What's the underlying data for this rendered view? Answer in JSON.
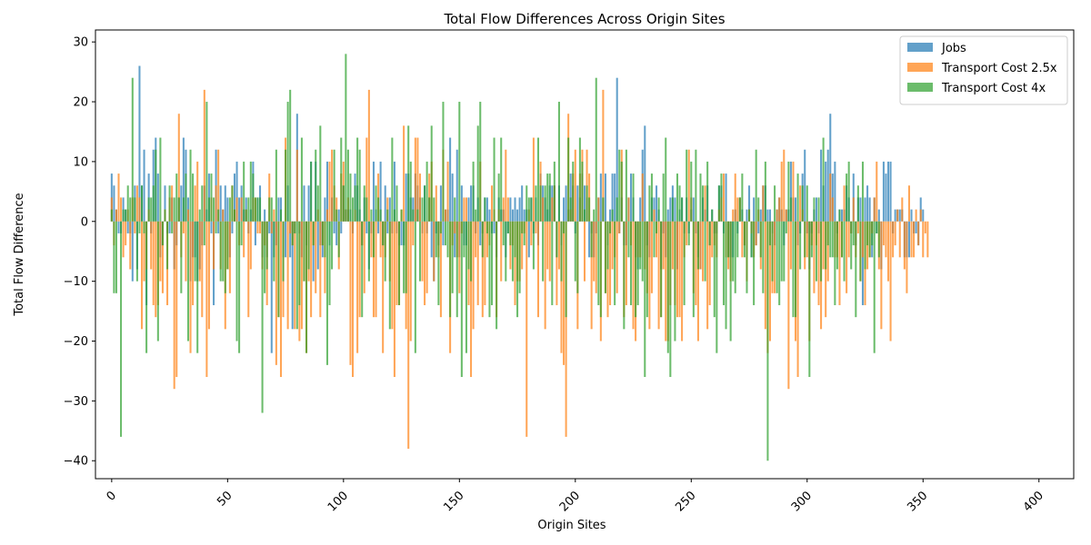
{
  "chart_data": {
    "type": "bar",
    "title": "Total Flow Differences Across Origin Sites",
    "xlabel": "Origin Sites",
    "ylabel": "Total Flow Difference",
    "xlim": [
      -7,
      415
    ],
    "ylim": [
      -43,
      32
    ],
    "x_ticks": [
      0,
      50,
      100,
      150,
      200,
      250,
      300,
      350,
      400
    ],
    "y_ticks": [
      -40,
      -30,
      -20,
      -10,
      0,
      10,
      20,
      30
    ],
    "legend_position": "top-right",
    "grid": false,
    "series": [
      {
        "name": "Jobs",
        "color": "#1f77b4",
        "values": [
          8,
          6,
          2,
          -2,
          -2,
          4,
          2,
          -2,
          -2,
          -10,
          6,
          -8,
          26,
          6,
          12,
          -14,
          8,
          -2,
          12,
          14,
          8,
          -6,
          -4,
          6,
          -2,
          -2,
          4,
          -8,
          -4,
          4,
          6,
          14,
          12,
          4,
          -10,
          -6,
          -6,
          -10,
          -8,
          -4,
          6,
          2,
          8,
          -2,
          -14,
          12,
          -2,
          6,
          2,
          6,
          4,
          -6,
          -2,
          8,
          10,
          4,
          6,
          2,
          4,
          -2,
          2,
          10,
          -4,
          4,
          6,
          -6,
          2,
          -6,
          -2,
          -22,
          -6,
          -4,
          4,
          4,
          -6,
          -6,
          6,
          -6,
          -18,
          -2,
          18,
          -2,
          -6,
          6,
          -4,
          6,
          10,
          -10,
          10,
          -8,
          -4,
          -6,
          4,
          10,
          -4,
          4,
          -2,
          -4,
          2,
          -2,
          6,
          2,
          2,
          2,
          -2,
          8,
          6,
          2,
          -4,
          4,
          -2,
          -8,
          -2,
          10,
          2,
          -2,
          10,
          -4,
          6,
          -2,
          4,
          -2,
          10,
          -2,
          -4,
          -4,
          -4,
          8,
          8,
          4,
          4,
          8,
          6,
          4,
          -2,
          6,
          -2,
          4,
          -6,
          -10,
          -2,
          -4,
          6,
          -4,
          2,
          2,
          14,
          8,
          -6,
          12,
          -6,
          6,
          -4,
          -4,
          4,
          6,
          6,
          -2,
          4,
          -4,
          -2,
          4,
          4,
          2,
          -2,
          -2,
          -6,
          4,
          2,
          2,
          -6,
          -2,
          4,
          2,
          4,
          2,
          4,
          6,
          2,
          2,
          -6,
          4,
          -2,
          4,
          -4,
          8,
          6,
          4,
          2,
          6,
          6,
          6,
          -6,
          6,
          -4,
          4,
          6,
          2,
          8,
          6,
          -2,
          6,
          4,
          8,
          6,
          4,
          -6,
          -2,
          -6,
          -2,
          4,
          8,
          4,
          8,
          -4,
          2,
          8,
          8,
          24,
          -2,
          4,
          -4,
          -4,
          4,
          8,
          4,
          -6,
          -8,
          4,
          12,
          16,
          -4,
          -6,
          4,
          4,
          6,
          2,
          -8,
          -2,
          -6,
          2,
          4,
          6,
          4,
          -8,
          2,
          4,
          -2,
          4,
          -2,
          2,
          4,
          -2,
          -6,
          -8,
          4,
          2,
          6,
          -4,
          2,
          -2,
          -2,
          6,
          6,
          -2,
          8,
          -6,
          -6,
          -6,
          2,
          -2,
          4,
          2,
          -4,
          2,
          6,
          -6,
          4,
          -4,
          -2,
          2,
          6,
          6,
          2,
          2,
          -2,
          -4,
          2,
          4,
          2,
          -4,
          2,
          2,
          10,
          4,
          4,
          -4,
          -2,
          8,
          12,
          -2,
          -8,
          -2,
          2,
          4,
          -2,
          12,
          6,
          10,
          12,
          18,
          8,
          10,
          -2,
          2,
          2,
          2,
          6,
          4,
          -2,
          8,
          -4,
          4,
          4,
          -14,
          4,
          6,
          4,
          -6,
          4,
          -2,
          2,
          -8,
          10,
          8,
          10,
          10,
          -2,
          2,
          2,
          2,
          2,
          -6,
          -6,
          -6,
          2,
          -2,
          -2,
          -4,
          4,
          2
        ]
      },
      {
        "name": "Transport Cost 2.5x",
        "color": "#ff7f0e",
        "values": [
          4,
          -4,
          2,
          8,
          4,
          -6,
          -4,
          2,
          -8,
          4,
          -2,
          6,
          4,
          -18,
          -10,
          -8,
          2,
          -8,
          -14,
          -16,
          -14,
          -10,
          -12,
          2,
          -14,
          4,
          6,
          -28,
          -26,
          18,
          -6,
          -2,
          -10,
          2,
          -22,
          -14,
          6,
          10,
          -10,
          -16,
          22,
          -26,
          -18,
          4,
          -8,
          6,
          12,
          -8,
          2,
          -18,
          -8,
          -12,
          6,
          2,
          4,
          -4,
          4,
          -6,
          2,
          -16,
          -8,
          4,
          4,
          -2,
          -2,
          -8,
          -4,
          -14,
          8,
          -2,
          2,
          -24,
          -16,
          -26,
          -16,
          14,
          -18,
          -2,
          -4,
          -18,
          12,
          -20,
          -18,
          -10,
          -22,
          -10,
          -16,
          -4,
          -12,
          2,
          -16,
          -4,
          -12,
          2,
          10,
          12,
          6,
          4,
          -8,
          8,
          10,
          2,
          4,
          -24,
          -26,
          2,
          -22,
          -16,
          -4,
          -12,
          14,
          22,
          -6,
          -16,
          -16,
          8,
          -6,
          -22,
          -6,
          4,
          -10,
          -18,
          -26,
          -14,
          -14,
          2,
          16,
          -18,
          -38,
          -20,
          -4,
          14,
          14,
          8,
          -10,
          -14,
          -12,
          8,
          10,
          -10,
          6,
          -6,
          -16,
          12,
          2,
          10,
          -22,
          -4,
          -2,
          -6,
          -12,
          -2,
          4,
          4,
          -14,
          -26,
          -18,
          -6,
          -14,
          10,
          -16,
          -14,
          -6,
          -4,
          6,
          2,
          -16,
          2,
          -10,
          4,
          12,
          4,
          -8,
          -4,
          -14,
          -10,
          -10,
          -8,
          -2,
          -36,
          2,
          -4,
          14,
          -2,
          -16,
          10,
          4,
          -18,
          -8,
          -10,
          4,
          6,
          -14,
          -8,
          -22,
          -24,
          -36,
          18,
          2,
          8,
          12,
          -18,
          8,
          12,
          -10,
          12,
          8,
          -18,
          -10,
          -12,
          4,
          -20,
          22,
          -12,
          -16,
          -14,
          -8,
          -6,
          -12,
          -2,
          12,
          -16,
          -14,
          4,
          -4,
          -18,
          -20,
          -6,
          -6,
          8,
          -8,
          -12,
          -18,
          -12,
          2,
          -6,
          -18,
          -16,
          -8,
          -20,
          -20,
          -14,
          -8,
          -14,
          -16,
          -16,
          -20,
          -6,
          -4,
          12,
          4,
          -12,
          -14,
          -20,
          -8,
          -10,
          6,
          -18,
          -14,
          -6,
          -4,
          -6,
          2,
          4,
          8,
          -6,
          -8,
          -10,
          2,
          8,
          4,
          4,
          -6,
          -4,
          -10,
          2,
          -2,
          -6,
          -4,
          2,
          -8,
          6,
          -18,
          -22,
          -20,
          -12,
          -12,
          2,
          4,
          10,
          12,
          2,
          -28,
          -8,
          10,
          -20,
          -26,
          6,
          2,
          -8,
          -6,
          -20,
          -4,
          -12,
          -4,
          -14,
          -18,
          -8,
          -16,
          -10,
          8,
          4,
          -6,
          -6,
          -14,
          -6,
          6,
          -12,
          -6,
          -2,
          4,
          -6,
          -2,
          -10,
          -6,
          -14,
          -8,
          -6,
          -2,
          4,
          10,
          -8,
          -18,
          -4,
          -6,
          -10,
          -20,
          -6,
          -4,
          2,
          -6,
          4,
          -8,
          -12,
          6,
          -6,
          -6,
          2,
          -4,
          2,
          -6,
          -2,
          -6
        ]
      },
      {
        "name": "Transport Cost 4x",
        "color": "#2ca02c",
        "values": [
          2,
          -12,
          -12,
          0,
          -36,
          2,
          2,
          6,
          4,
          24,
          4,
          -10,
          -2,
          6,
          -2,
          -22,
          4,
          4,
          6,
          12,
          -20,
          14,
          -4,
          2,
          -8,
          6,
          -2,
          4,
          8,
          4,
          -12,
          4,
          8,
          -20,
          12,
          8,
          -10,
          -22,
          2,
          6,
          -4,
          20,
          4,
          8,
          4,
          -2,
          2,
          -10,
          -10,
          -12,
          -8,
          4,
          6,
          2,
          -20,
          -22,
          -4,
          10,
          2,
          4,
          10,
          8,
          4,
          4,
          4,
          -32,
          -12,
          -8,
          4,
          4,
          -10,
          12,
          -16,
          2,
          -10,
          12,
          20,
          22,
          -4,
          -2,
          -18,
          -14,
          14,
          -10,
          -22,
          -8,
          10,
          -4,
          12,
          6,
          16,
          -4,
          -6,
          -24,
          -14,
          -8,
          12,
          2,
          -6,
          14,
          6,
          28,
          12,
          8,
          4,
          6,
          14,
          12,
          -16,
          6,
          4,
          -10,
          2,
          -6,
          6,
          4,
          2,
          -4,
          -10,
          2,
          -18,
          14,
          2,
          6,
          -14,
          2,
          -12,
          -12,
          16,
          10,
          2,
          -22,
          2,
          -10,
          4,
          6,
          10,
          4,
          16,
          4,
          -6,
          -14,
          -2,
          20,
          -4,
          -6,
          -16,
          -12,
          4,
          -16,
          20,
          -26,
          -6,
          -22,
          -8,
          -10,
          10,
          2,
          16,
          20,
          -6,
          4,
          -2,
          -16,
          -14,
          14,
          -18,
          8,
          14,
          -4,
          -10,
          -2,
          -4,
          -10,
          -6,
          -16,
          -12,
          -2,
          -4,
          6,
          4,
          4,
          -8,
          6,
          14,
          6,
          -10,
          6,
          8,
          8,
          -14,
          10,
          -6,
          20,
          -10,
          -2,
          -16,
          14,
          4,
          10,
          -10,
          -12,
          14,
          10,
          2,
          6,
          4,
          -6,
          2,
          24,
          -14,
          -16,
          4,
          -12,
          -8,
          -2,
          2,
          -14,
          4,
          12,
          10,
          -18,
          12,
          -6,
          -14,
          8,
          -16,
          -14,
          -8,
          -10,
          -26,
          -16,
          6,
          8,
          -6,
          -2,
          4,
          -16,
          8,
          14,
          -22,
          -26,
          4,
          -20,
          8,
          6,
          4,
          -14,
          12,
          -4,
          10,
          -16,
          12,
          -8,
          8,
          6,
          -10,
          10,
          -4,
          2,
          -16,
          -22,
          6,
          8,
          -14,
          -18,
          -6,
          -20,
          -10,
          -12,
          -6,
          4,
          8,
          -6,
          -12,
          2,
          -6,
          -14,
          12,
          4,
          -6,
          -12,
          10,
          -40,
          -4,
          -10,
          6,
          -12,
          -14,
          -10,
          -10,
          -2,
          10,
          4,
          -16,
          -16,
          8,
          -8,
          6,
          -6,
          6,
          -26,
          -6,
          4,
          -10,
          4,
          -10,
          14,
          -8,
          -4,
          -6,
          -6,
          -14,
          -8,
          2,
          -6,
          -10,
          8,
          10,
          -8,
          -4,
          -16,
          6,
          -10,
          10,
          -8,
          -4,
          -6,
          -4,
          -22,
          -2,
          -6
        ]
      }
    ]
  }
}
